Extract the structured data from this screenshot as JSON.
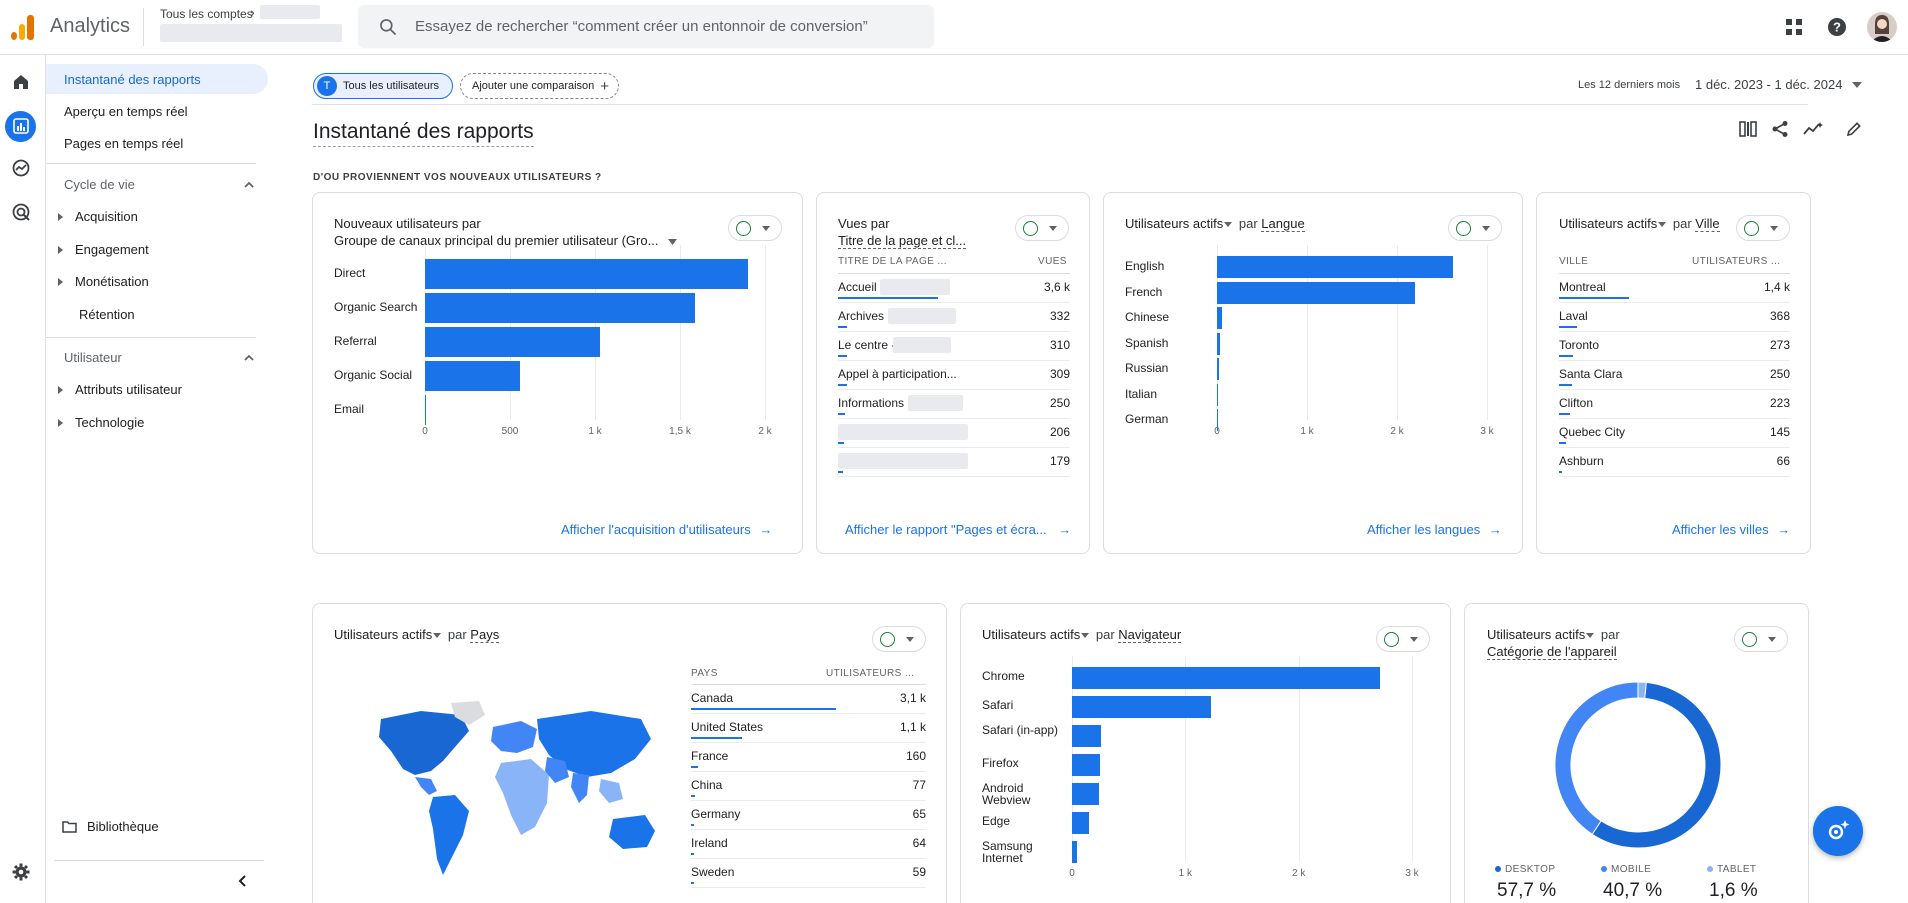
{
  "app": {
    "title": "Analytics",
    "accounts_label": "Tous les comptes"
  },
  "search": {
    "placeholder": "Essayez de rechercher “comment créer un entonnoir de conversion”"
  },
  "nav": {
    "items": [
      "Instantané des rapports",
      "Aperçu en temps réel",
      "Pages en temps réel"
    ],
    "lifecycle": {
      "label": "Cycle de vie",
      "items": [
        "Acquisition",
        "Engagement",
        "Monétisation",
        "Rétention"
      ]
    },
    "user": {
      "label": "Utilisateur",
      "items": [
        "Attributs utilisateur",
        "Technologie"
      ]
    },
    "library": "Bibliothèque"
  },
  "comparison": {
    "all_users_initial": "T",
    "all_users": "Tous les utilisateurs",
    "add": "Ajouter une comparaison"
  },
  "date": {
    "preset": "Les 12 derniers mois",
    "range": "1 déc. 2023 - 1 déc. 2024"
  },
  "page_title": "Instantané des rapports",
  "section_heading": "D'OU PROVIENNENT VOS NOUVEAUX UTILISATEURS ?",
  "cards": {
    "acquisition": {
      "title_a": "Nouveaux utilisateurs par",
      "title_b": "Groupe de canaux principal du premier utilisateur (Gro...",
      "link": "Afficher l'acquisition d'utilisateurs"
    },
    "pages": {
      "title_a": "Vues par",
      "title_b": "Titre de la page et cl...",
      "col_k": "TITRE DE LA PAGE ...",
      "col_v": "VUES",
      "rows": [
        {
          "k": "Accueil",
          "v": "3,6 k"
        },
        {
          "k": "Archives",
          "v": "332"
        },
        {
          "k": "Le centre -",
          "v": "310"
        },
        {
          "k": "Appel à participation...",
          "v": "309"
        },
        {
          "k": "Informations",
          "v": "250"
        },
        {
          "k": "",
          "v": "206"
        },
        {
          "k": "",
          "v": "179"
        }
      ],
      "link": "Afficher le rapport \"Pages et écra..."
    },
    "language": {
      "metric": "Utilisateurs actifs",
      "by": "par",
      "dim": "Langue",
      "link": "Afficher les langues"
    },
    "city": {
      "metric": "Utilisateurs actifs",
      "by": "par",
      "dim": "Ville",
      "col_k": "VILLE",
      "col_v": "UTILISATEURS ...",
      "rows": [
        {
          "k": "Montreal",
          "v": "1,4 k"
        },
        {
          "k": "Laval",
          "v": "368"
        },
        {
          "k": "Toronto",
          "v": "273"
        },
        {
          "k": "Santa Clara",
          "v": "250"
        },
        {
          "k": "Clifton",
          "v": "223"
        },
        {
          "k": "Quebec City",
          "v": "145"
        },
        {
          "k": "Ashburn",
          "v": "66"
        }
      ],
      "link": "Afficher les villes"
    },
    "country": {
      "metric": "Utilisateurs actifs",
      "by": "par",
      "dim": "Pays",
      "col_k": "PAYS",
      "col_v": "UTILISATEURS ...",
      "rows": [
        {
          "k": "Canada",
          "v": "3,1 k"
        },
        {
          "k": "United States",
          "v": "1,1 k"
        },
        {
          "k": "France",
          "v": "160"
        },
        {
          "k": "China",
          "v": "77"
        },
        {
          "k": "Germany",
          "v": "65"
        },
        {
          "k": "Ireland",
          "v": "64"
        },
        {
          "k": "Sweden",
          "v": "59"
        }
      ]
    },
    "browser": {
      "metric": "Utilisateurs actifs",
      "by": "par",
      "dim": "Navigateur"
    },
    "device": {
      "metric": "Utilisateurs actifs",
      "by": "par",
      "dim": "Catégorie de l'appareil",
      "legend": [
        {
          "label": "DESKTOP",
          "value": "57,7 %",
          "color": "#1967d2"
        },
        {
          "label": "MOBILE",
          "value": "40,7 %",
          "color": "#4285f4"
        },
        {
          "label": "TABLET",
          "value": "1,6 %",
          "color": "#8ab4f8"
        }
      ]
    }
  },
  "chart_data": [
    {
      "type": "bar",
      "orientation": "horizontal",
      "categories": [
        "Direct",
        "Organic Search",
        "Referral",
        "Organic Social",
        "Email"
      ],
      "values": [
        1900,
        1590,
        1030,
        560,
        5
      ],
      "xticks": [
        "0",
        "500",
        "1 k",
        "1,5 k",
        "2 k"
      ],
      "xlim": [
        0,
        2000
      ]
    },
    {
      "type": "bar",
      "orientation": "horizontal",
      "categories": [
        "English",
        "French",
        "Chinese",
        "Spanish",
        "Russian",
        "Italian",
        "German"
      ],
      "values": [
        2620,
        2200,
        60,
        30,
        25,
        15,
        10
      ],
      "xticks": [
        "0",
        "1 k",
        "2 k",
        "3 k"
      ],
      "xlim": [
        0,
        3000
      ]
    },
    {
      "type": "bar",
      "orientation": "horizontal",
      "categories": [
        "Chrome",
        "Safari",
        "Safari (in-app)",
        "Firefox",
        "Android Webview",
        "Edge",
        "Samsung Internet"
      ],
      "values": [
        2720,
        1230,
        260,
        250,
        240,
        150,
        45
      ],
      "xticks": [
        "0",
        "1 k",
        "2 k",
        "3 k"
      ],
      "xlim": [
        0,
        3000
      ]
    },
    {
      "type": "pie",
      "categories": [
        "DESKTOP",
        "MOBILE",
        "TABLET"
      ],
      "values": [
        57.7,
        40.7,
        1.6
      ]
    }
  ]
}
